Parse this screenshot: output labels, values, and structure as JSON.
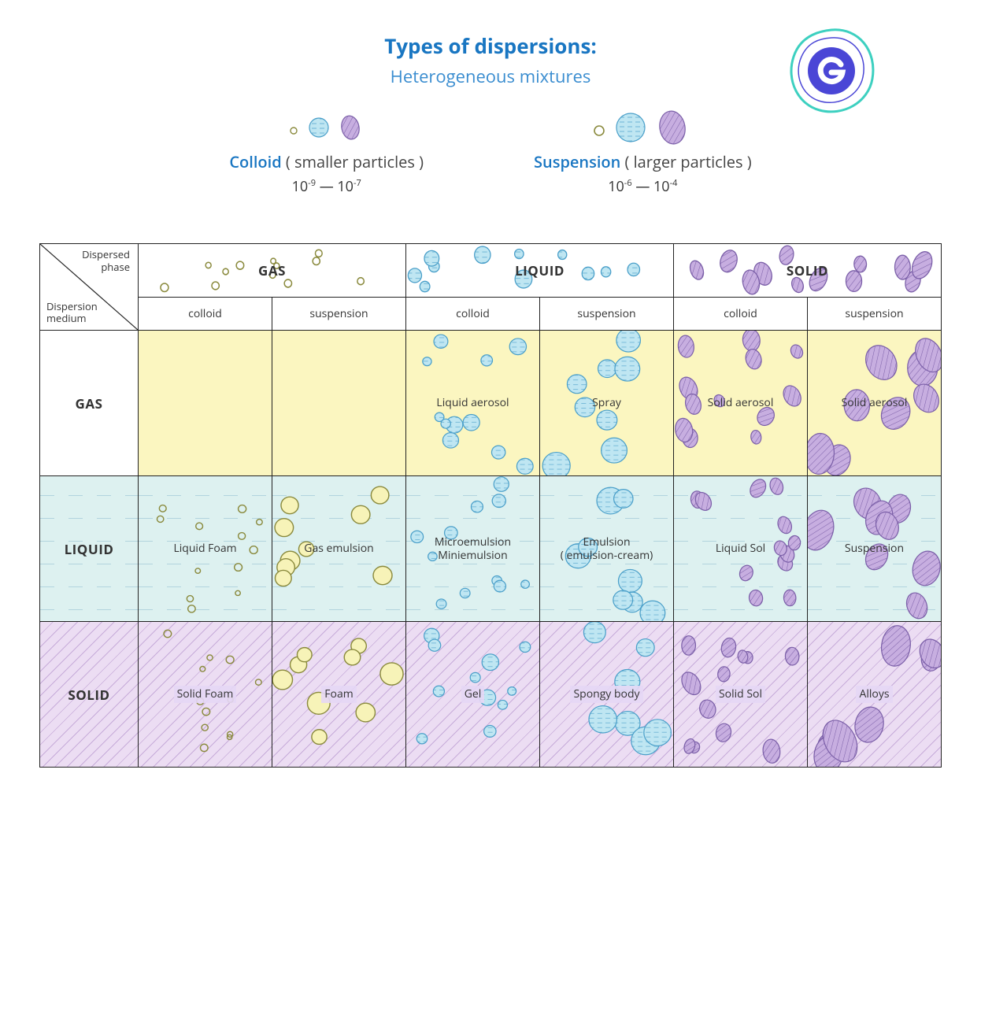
{
  "title": "Types of dispersions:",
  "subtitle": "Heterogeneous mixtures",
  "colors": {
    "title": "#1976c2",
    "subtitle": "#3a8dd0",
    "gas_bg": "#fbf6c0",
    "liquid_bg": "#ddf1f0",
    "solid_bg": "#ecddf3",
    "gas_particle_stroke": "#8a8a3d",
    "gas_particle_fill": "#f7f3b8",
    "liquid_particle_stroke": "#4a9fc9",
    "liquid_particle_fill": "#bfe6f2",
    "solid_particle_stroke": "#7b5fa8",
    "solid_particle_fill": "#c7aee0",
    "border": "#222222",
    "logo_ring": "#3dd0c0",
    "logo_core": "#4a46d6"
  },
  "legend": {
    "colloid": {
      "label_accent": "Colloid",
      "label_rest": " ( smaller particles )",
      "range_html": "10⁻⁹ — 10⁻⁷"
    },
    "suspension": {
      "label_accent": "Suspension",
      "label_rest": " ( larger particles )",
      "range_html": "10⁻⁶ — 10⁻⁴"
    }
  },
  "table": {
    "corner_top": "Dispersed\nphase",
    "corner_bottom": "Dispersion\nmedium",
    "phase_headers": [
      "GAS",
      "LIQUID",
      "SOLID"
    ],
    "sub_headers": [
      "colloid",
      "suspension",
      "colloid",
      "suspension",
      "colloid",
      "suspension"
    ],
    "medium_headers": [
      "GAS",
      "LIQUID",
      "SOLID"
    ],
    "rows": [
      {
        "medium": "GAS",
        "medium_bg": "bg-none",
        "cell_bg": "bg-gas",
        "cells": [
          {
            "label": "",
            "particles": "none"
          },
          {
            "label": "",
            "particles": "none"
          },
          {
            "label": "Liquid aerosol",
            "particles": "liquid-small"
          },
          {
            "label": "Spray",
            "particles": "liquid-large"
          },
          {
            "label": "Solid aerosol",
            "particles": "solid-small"
          },
          {
            "label": "Solid aerosol",
            "particles": "solid-large"
          }
        ]
      },
      {
        "medium": "LIQUID",
        "medium_bg": "bg-liquid liquid-bg",
        "cell_bg": "bg-liquid liquid-bg",
        "cells": [
          {
            "label": "Liquid Foam",
            "particles": "gas-small"
          },
          {
            "label": "Gas emulsion",
            "particles": "gas-large"
          },
          {
            "label": "Microemulsion\nMiniemulsion",
            "particles": "liquid-small"
          },
          {
            "label": "Emulsion\n( emulsion-cream)",
            "particles": "liquid-large"
          },
          {
            "label": "Liquid Sol",
            "particles": "solid-small"
          },
          {
            "label": "Suspension",
            "particles": "solid-large"
          }
        ]
      },
      {
        "medium": "SOLID",
        "medium_bg": "bg-solid solid-bg",
        "cell_bg": "bg-solid solid-bg",
        "cells": [
          {
            "label": "Solid Foam",
            "particles": "gas-small",
            "boxed": true
          },
          {
            "label": "Foam",
            "particles": "gas-large",
            "boxed": true
          },
          {
            "label": "Gel",
            "particles": "liquid-small",
            "boxed": true
          },
          {
            "label": "Spongy body",
            "particles": "liquid-large",
            "boxed": true
          },
          {
            "label": "Solid Sol",
            "particles": "solid-small",
            "boxed": true
          },
          {
            "label": "Alloys",
            "particles": "solid-large",
            "boxed": true
          }
        ]
      }
    ]
  },
  "particle_defs": {
    "gas-small": {
      "kind": "circle",
      "fill": "none",
      "stroke": "#8a8a3d",
      "rmin": 3,
      "rmax": 5,
      "n": 12,
      "sw": 1.4
    },
    "gas-large": {
      "kind": "circle",
      "fill": "#f7f3b8",
      "stroke": "#8a8a3d",
      "rmin": 9,
      "rmax": 15,
      "n": 9,
      "sw": 1.4
    },
    "liquid-small": {
      "kind": "droplet",
      "fill": "#bfe6f2",
      "stroke": "#4a9fc9",
      "rmin": 5,
      "rmax": 11,
      "n": 11,
      "sw": 1.2
    },
    "liquid-large": {
      "kind": "droplet",
      "fill": "#bfe6f2",
      "stroke": "#4a9fc9",
      "rmin": 11,
      "rmax": 18,
      "n": 8,
      "sw": 1.2
    },
    "solid-small": {
      "kind": "solid",
      "fill": "#c7aee0",
      "stroke": "#7b5fa8",
      "rmin": 6,
      "rmax": 11,
      "n": 12,
      "sw": 1.2
    },
    "solid-large": {
      "kind": "solid",
      "fill": "#c7aee0",
      "stroke": "#7b5fa8",
      "rmin": 12,
      "rmax": 20,
      "n": 8,
      "sw": 1.2
    }
  }
}
